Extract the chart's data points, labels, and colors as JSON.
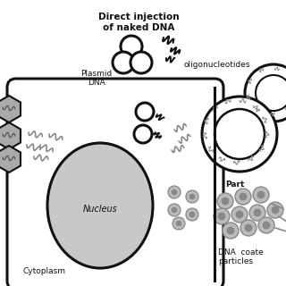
{
  "bg_color": "#ffffff",
  "title": "Direct injection\nof naked DNA",
  "text_plasmid": "Plasmid\nDNA",
  "text_oligo": "oligonucleotides",
  "text_nucleus": "Nucleus",
  "text_cytoplasm": "Cytoplasm",
  "text_part": "Part",
  "text_dna_coated": "DNA coate\nparticles",
  "gray_dark": "#111111",
  "gray_mid": "#888888",
  "gray_light": "#bbbbbb",
  "gray_fill": "#c8c8c8",
  "gray_hex": "#aaaaaa"
}
